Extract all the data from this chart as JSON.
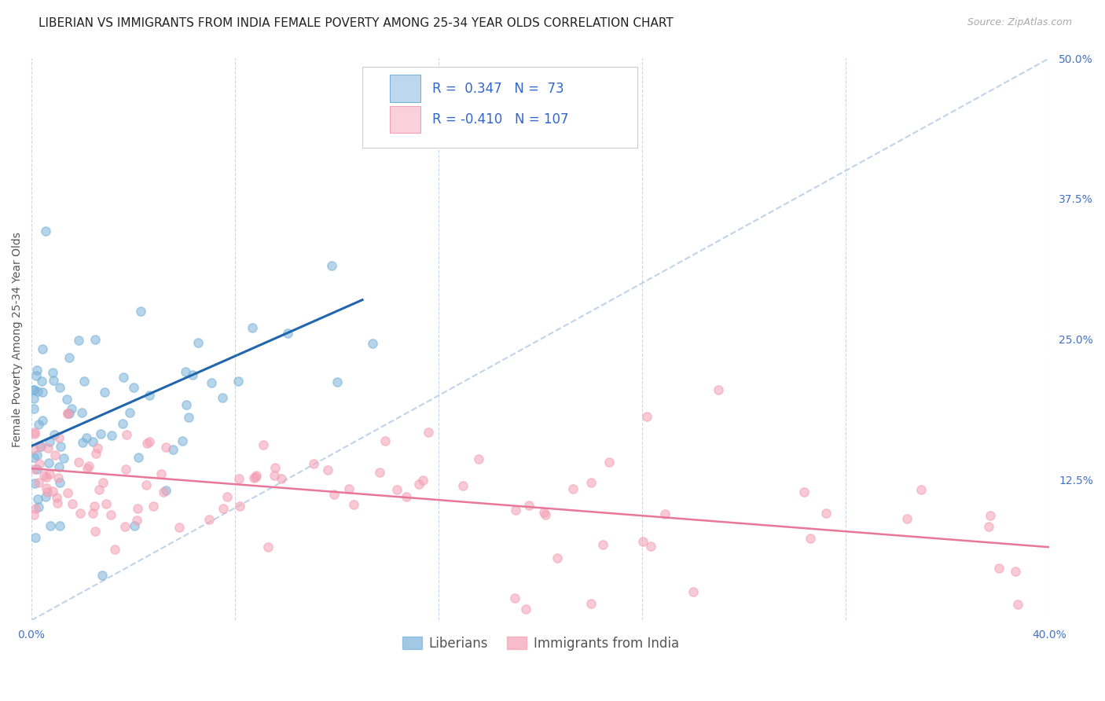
{
  "title": "LIBERIAN VS IMMIGRANTS FROM INDIA FEMALE POVERTY AMONG 25-34 YEAR OLDS CORRELATION CHART",
  "source": "Source: ZipAtlas.com",
  "ylabel": "Female Poverty Among 25-34 Year Olds",
  "xlabel_liberians": "Liberians",
  "xlabel_india": "Immigrants from India",
  "xlim": [
    0.0,
    0.4
  ],
  "ylim": [
    0.0,
    0.5
  ],
  "liberian_R": "0.347",
  "liberian_N": "73",
  "india_R": "-0.410",
  "india_N": "107",
  "liberian_dot_color": "#7ab3d9",
  "india_dot_color": "#f4a0b5",
  "trend_liberian_color": "#2166ac",
  "trend_india_color": "#e8779a",
  "trend_dashed_color": "#b8cfe8",
  "background_color": "#ffffff",
  "grid_color": "#c8d8e8",
  "title_fontsize": 11,
  "axis_label_fontsize": 10,
  "tick_fontsize": 10,
  "legend_fontsize": 12,
  "lib_trend_x0": 0.0,
  "lib_trend_y0": 0.155,
  "lib_trend_x1": 0.13,
  "lib_trend_y1": 0.285,
  "ind_trend_x0": 0.0,
  "ind_trend_y0": 0.135,
  "ind_trend_x1": 0.4,
  "ind_trend_y1": 0.065
}
